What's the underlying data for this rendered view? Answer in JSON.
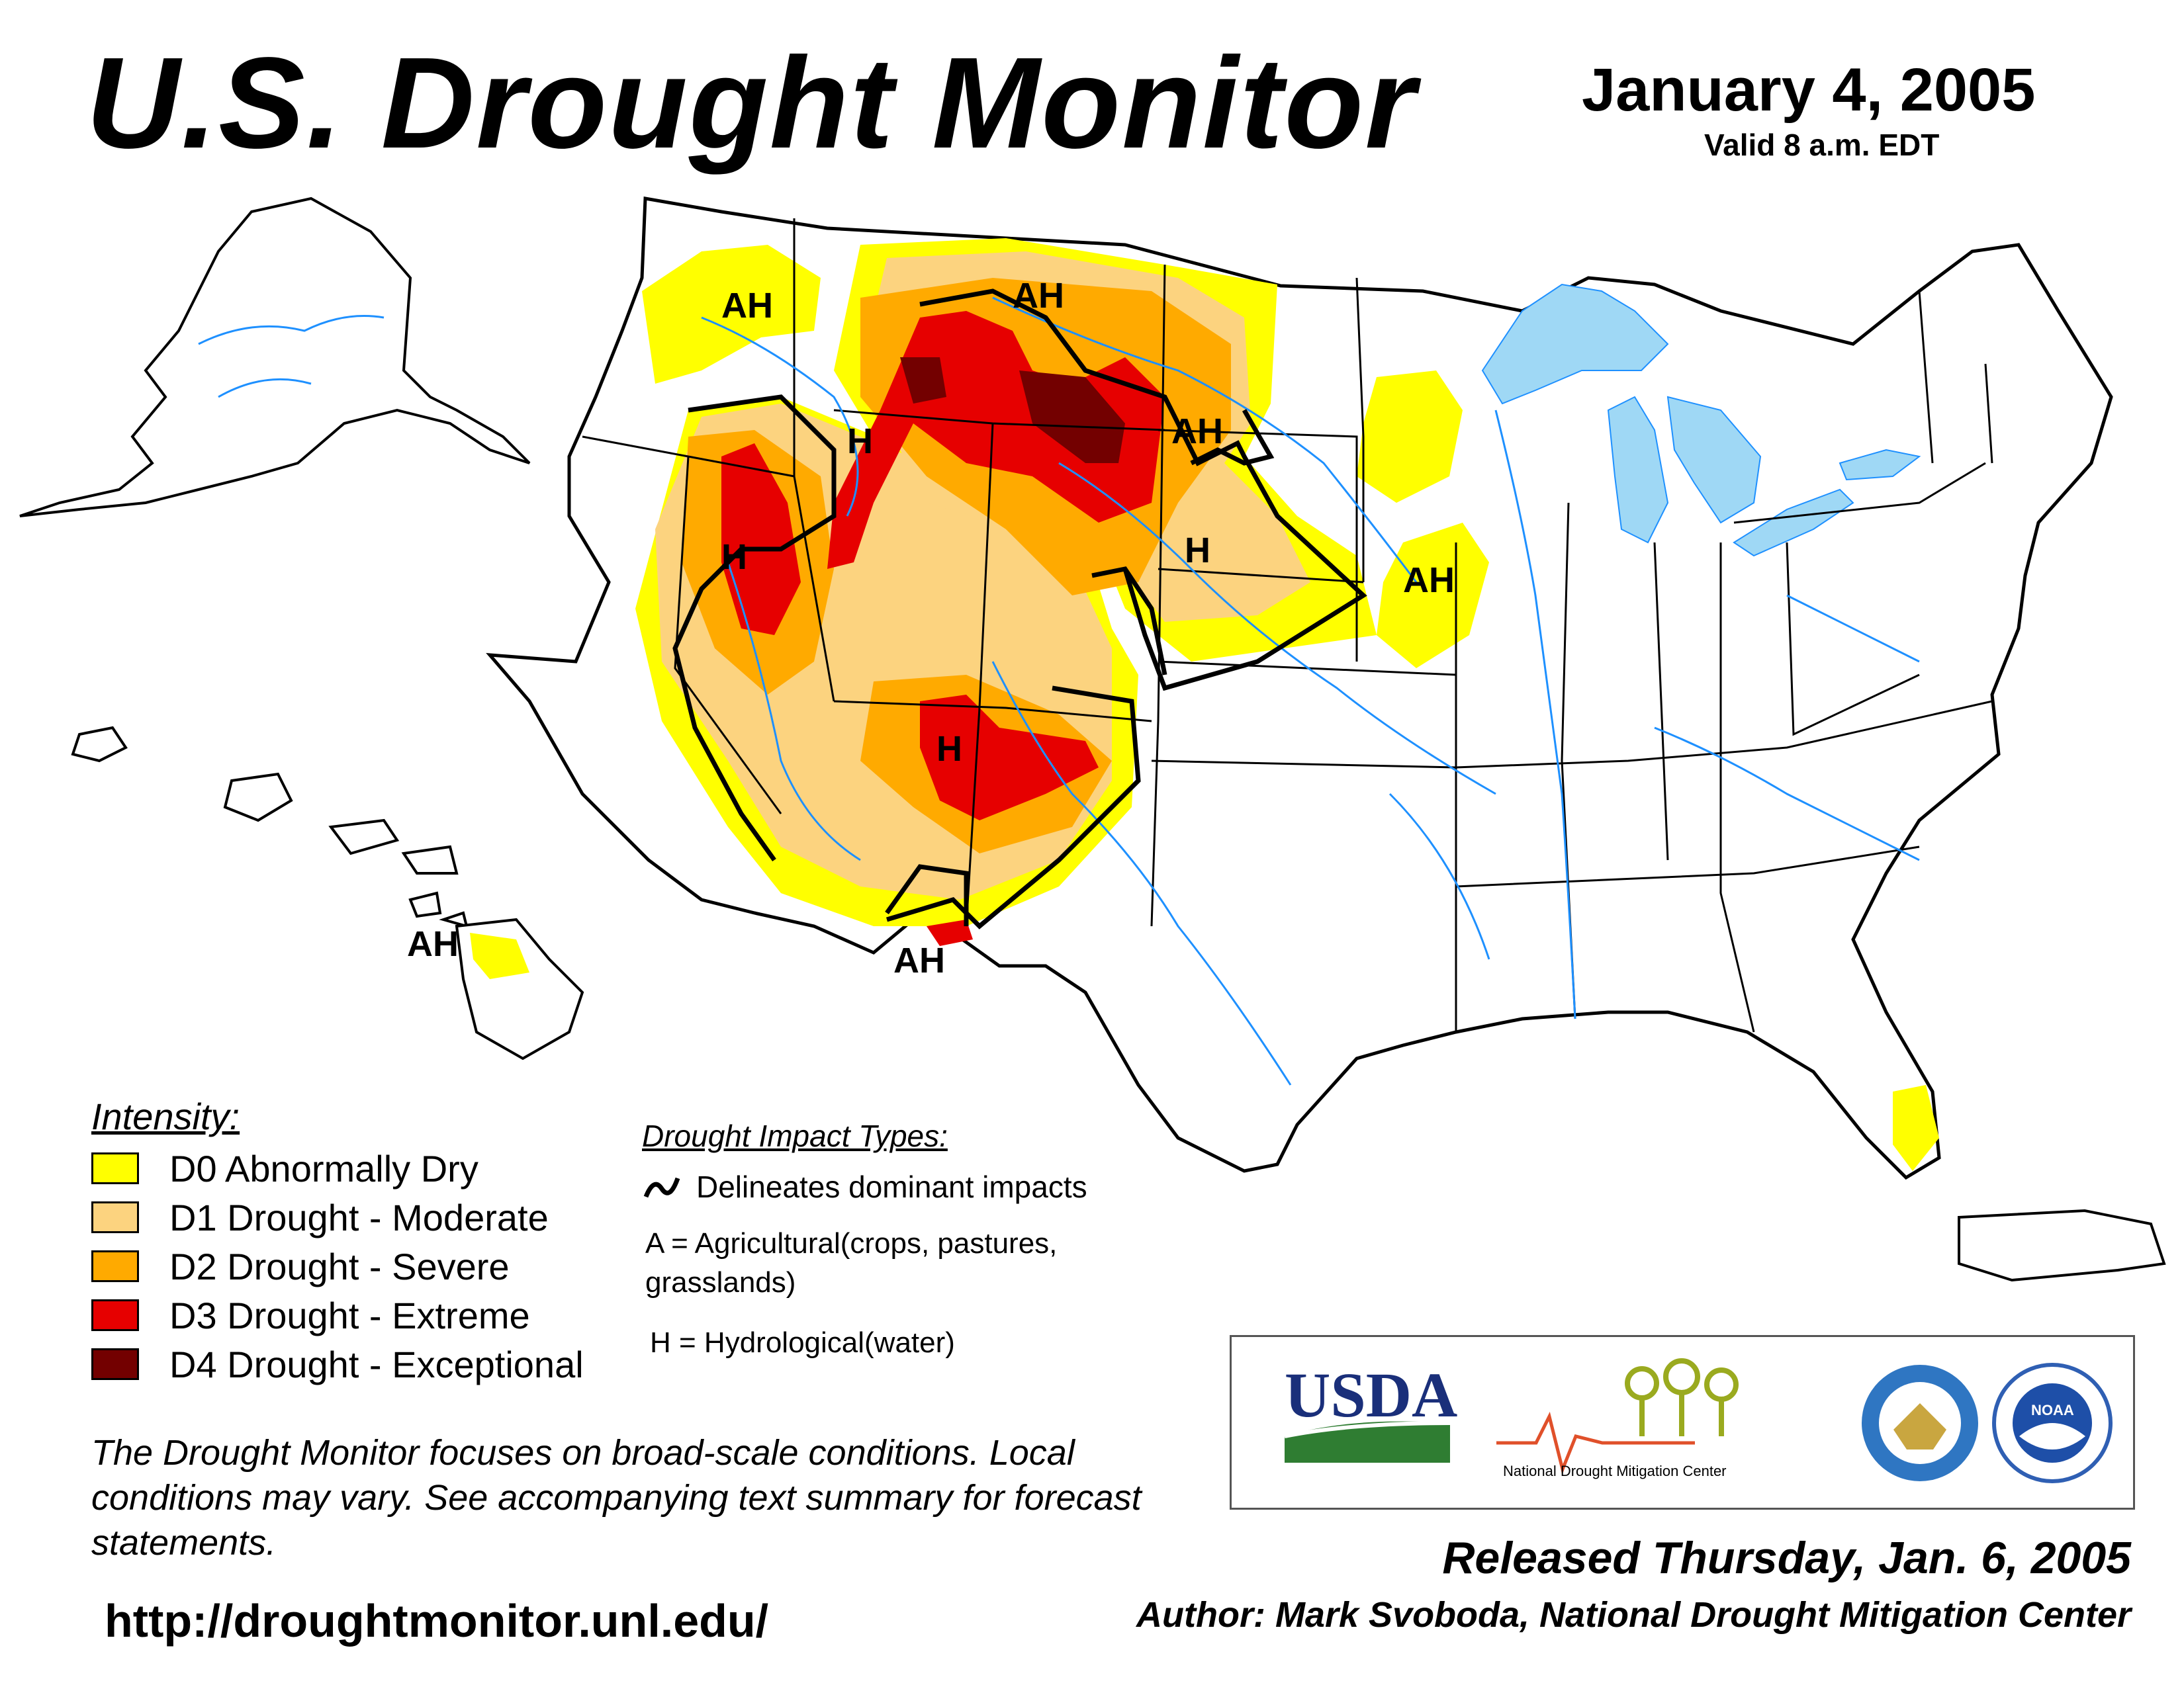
{
  "header": {
    "title": "U.S. Drought Monitor",
    "date": "January 4, 2005",
    "valid": "Valid 8 a.m. EDT"
  },
  "map": {
    "region_labels": [
      "AH",
      "AH",
      "H",
      "AH",
      "H",
      "AH",
      "H",
      "H",
      "AH",
      "AH"
    ]
  },
  "legend": {
    "title": "Intensity:",
    "items": [
      {
        "label": "D0 Abnormally Dry",
        "color": "#ffff00"
      },
      {
        "label": "D1 Drought - Moderate",
        "color": "#fcd37f"
      },
      {
        "label": "D2 Drought - Severe",
        "color": "#ffaa00"
      },
      {
        "label": "D3 Drought - Extreme",
        "color": "#e60000"
      },
      {
        "label": "D4 Drought - Exceptional",
        "color": "#730000"
      }
    ]
  },
  "impact": {
    "title": "Drought Impact Types:",
    "line_label": "Delineates dominant impacts",
    "agricultural": "A = Agricultural(crops, pastures, grasslands)",
    "hydrological": "H = Hydrological(water)"
  },
  "disclaimer": "The Drought Monitor focuses on broad-scale conditions. Local conditions may vary. See accompanying text summary for forecast statements.",
  "url": "http://droughtmonitor.unl.edu/",
  "logos": {
    "usda": "USDA",
    "ndmc": "National Drought Mitigation Center",
    "commerce_icon": "department-of-commerce-seal-icon",
    "noaa": "NOAA"
  },
  "footer": {
    "released": "Released Thursday, Jan. 6, 2005",
    "author": "Author: Mark Svoboda, National Drought Mitigation Center"
  }
}
